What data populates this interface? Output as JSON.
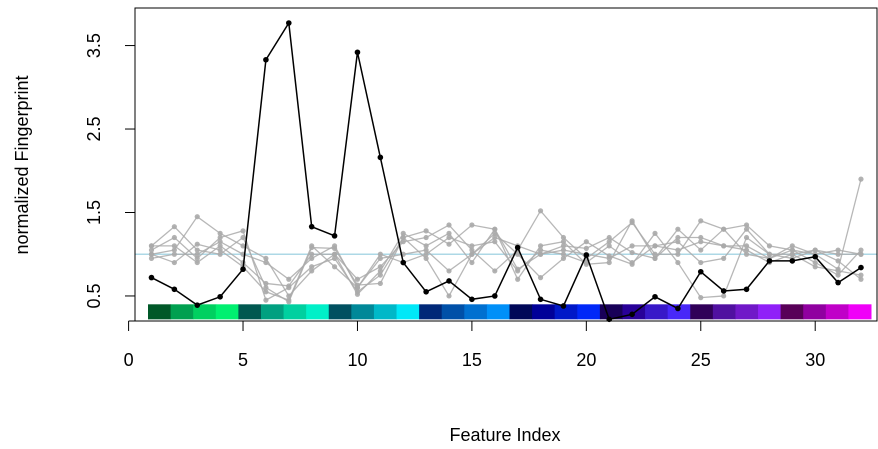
{
  "chart_data": {
    "type": "line",
    "title": "",
    "xlabel": "Feature Index",
    "ylabel": "normalized Fingerprint",
    "xlim": [
      0.28,
      32.7
    ],
    "ylim": [
      0.2,
      3.95
    ],
    "x_ticks": [
      "0",
      "5",
      "10",
      "15",
      "20",
      "25",
      "30"
    ],
    "y_ticks": [
      "0.5",
      "1.5",
      "2.5",
      "3.5"
    ],
    "y_tick_values": [
      0.5,
      1.5,
      2.5,
      3.5
    ],
    "reference_line": {
      "y": 1.0,
      "color": "#add8e6"
    },
    "x": [
      1,
      2,
      3,
      4,
      5,
      6,
      7,
      8,
      9,
      10,
      11,
      12,
      13,
      14,
      15,
      16,
      17,
      18,
      19,
      20,
      21,
      22,
      23,
      24,
      25,
      26,
      27,
      28,
      29,
      30,
      31,
      32
    ],
    "highlight_series": {
      "color": "#000000",
      "values": [
        0.72,
        0.58,
        0.39,
        0.49,
        0.82,
        3.33,
        3.77,
        1.33,
        1.22,
        3.42,
        2.16,
        0.9,
        0.55,
        0.68,
        0.46,
        0.5,
        1.08,
        0.46,
        0.38,
        0.99,
        0.22,
        0.28,
        0.49,
        0.35,
        0.79,
        0.56,
        0.58,
        0.92,
        0.92,
        0.97,
        0.66,
        0.84
      ]
    },
    "background_series": {
      "color": "#aaaaaa",
      "series": [
        [
          1.1,
          1.33,
          1.05,
          1.0,
          1.2,
          0.6,
          0.43,
          1.08,
          1.07,
          0.63,
          0.65,
          1.2,
          1.28,
          1.12,
          1.35,
          1.3,
          0.82,
          1.0,
          1.1,
          1.07,
          1.2,
          1.02,
          0.95,
          1.3,
          1.05,
          1.3,
          1.35,
          1.1,
          1.05,
          1.0,
          0.82,
          1.9
        ],
        [
          1.0,
          1.05,
          1.45,
          1.25,
          1.1,
          0.95,
          0.5,
          0.8,
          1.0,
          0.7,
          0.85,
          1.15,
          1.2,
          1.35,
          1.05,
          0.8,
          1.05,
          1.52,
          1.2,
          0.95,
          1.15,
          1.38,
          1.0,
          1.0,
          1.4,
          1.3,
          1.0,
          0.95,
          1.1,
          1.0,
          1.05,
          1.0
        ],
        [
          1.05,
          1.2,
          0.95,
          1.2,
          1.28,
          0.45,
          0.6,
          0.85,
          0.95,
          0.55,
          0.75,
          1.2,
          0.95,
          0.5,
          1.0,
          1.25,
          1.0,
          0.72,
          0.95,
          1.15,
          0.98,
          0.88,
          1.25,
          0.9,
          0.48,
          0.5,
          1.2,
          1.0,
          1.0,
          0.85,
          0.8,
          0.75
        ],
        [
          1.0,
          0.9,
          1.12,
          1.05,
          0.85,
          0.55,
          0.45,
          1.1,
          0.85,
          0.6,
          1.0,
          0.9,
          1.0,
          1.2,
          1.1,
          1.15,
          0.8,
          1.05,
          1.0,
          0.9,
          1.1,
          0.9,
          1.1,
          1.15,
          0.9,
          0.95,
          1.3,
          1.0,
          0.95,
          1.05,
          0.92,
          0.7
        ],
        [
          0.95,
          1.0,
          1.0,
          1.15,
          1.0,
          0.9,
          0.7,
          0.95,
          1.1,
          0.6,
          0.95,
          1.0,
          1.05,
          0.8,
          1.0,
          1.2,
          1.1,
          1.0,
          1.05,
          1.0,
          0.95,
          1.1,
          1.1,
          1.05,
          1.15,
          1.1,
          1.05,
          0.9,
          1.0,
          1.05,
          1.0,
          1.0
        ],
        [
          1.1,
          1.1,
          0.9,
          1.1,
          0.9,
          0.65,
          0.62,
          1.0,
          1.0,
          0.52,
          0.8,
          1.25,
          1.1,
          1.25,
          0.9,
          1.3,
          0.7,
          1.1,
          1.15,
          0.88,
          0.9,
          1.4,
          0.95,
          1.2,
          1.2,
          1.1,
          1.1,
          0.95,
          1.05,
          0.9,
          0.75,
          1.05
        ]
      ]
    },
    "color_strip": {
      "y_range": [
        0.22,
        0.4
      ],
      "colors": [
        "#005828",
        "#00a050",
        "#00d060",
        "#00f070",
        "#005850",
        "#00a080",
        "#00d0a0",
        "#00f0c8",
        "#005060",
        "#008898",
        "#00b8c8",
        "#00e8f8",
        "#002878",
        "#0050a8",
        "#0070d0",
        "#0090f8",
        "#000858",
        "#000098",
        "#0018c8",
        "#0028f8",
        "#180058",
        "#280098",
        "#3818c8",
        "#4828f8",
        "#300058",
        "#5010a0",
        "#7018c8",
        "#9020f8",
        "#580058",
        "#9000a0",
        "#c000c8",
        "#f000f8"
      ]
    }
  }
}
